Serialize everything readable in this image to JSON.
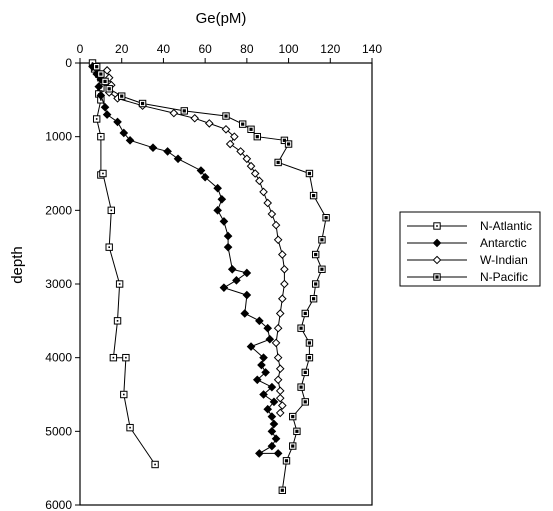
{
  "chart_data": {
    "type": "line",
    "title": "",
    "xlabel": "Ge(pM)",
    "ylabel": "depth",
    "xlim": [
      0,
      140
    ],
    "ylim": [
      0,
      6000
    ],
    "y_inverted": true,
    "x_axis_position": "top",
    "x_ticks": [
      0,
      20,
      40,
      60,
      80,
      100,
      120,
      140
    ],
    "y_ticks": [
      0,
      1000,
      2000,
      3000,
      4000,
      5000,
      6000
    ],
    "grid": false,
    "legend_position": "right",
    "series": [
      {
        "name": "N-Atlantic",
        "marker": "square-open",
        "points": [
          [
            6,
            0
          ],
          [
            7,
            80
          ],
          [
            9,
            150
          ],
          [
            10,
            200
          ],
          [
            11,
            260
          ],
          [
            10,
            340
          ],
          [
            9,
            420
          ],
          [
            10,
            500
          ],
          [
            8,
            760
          ],
          [
            10,
            1000
          ],
          [
            10,
            1520
          ],
          [
            11,
            1500
          ],
          [
            15,
            2000
          ],
          [
            14,
            2500
          ],
          [
            19,
            3000
          ],
          [
            18,
            3500
          ],
          [
            16,
            4000
          ],
          [
            22,
            4000
          ],
          [
            21,
            4500
          ],
          [
            24,
            4950
          ],
          [
            36,
            5450
          ]
        ]
      },
      {
        "name": "Antarctic",
        "marker": "diamond-filled",
        "points": [
          [
            6,
            50
          ],
          [
            8,
            150
          ],
          [
            10,
            220
          ],
          [
            9,
            320
          ],
          [
            10,
            440
          ],
          [
            12,
            600
          ],
          [
            13,
            700
          ],
          [
            18,
            800
          ],
          [
            21,
            950
          ],
          [
            24,
            1050
          ],
          [
            35,
            1150
          ],
          [
            42,
            1200
          ],
          [
            47,
            1300
          ],
          [
            58,
            1460
          ],
          [
            60,
            1550
          ],
          [
            66,
            1700
          ],
          [
            68,
            1850
          ],
          [
            66,
            2000
          ],
          [
            69,
            2150
          ],
          [
            71,
            2350
          ],
          [
            71,
            2500
          ],
          [
            73,
            2800
          ],
          [
            80,
            2850
          ],
          [
            75,
            2950
          ],
          [
            69,
            3050
          ],
          [
            80,
            3150
          ],
          [
            79,
            3400
          ],
          [
            86,
            3500
          ],
          [
            90,
            3600
          ],
          [
            91,
            3750
          ],
          [
            82,
            3850
          ],
          [
            88,
            4000
          ],
          [
            87,
            4100
          ],
          [
            89,
            4200
          ],
          [
            85,
            4300
          ],
          [
            92,
            4400
          ],
          [
            88,
            4500
          ],
          [
            93,
            4600
          ],
          [
            90,
            4700
          ],
          [
            92,
            4800
          ],
          [
            93,
            4900
          ],
          [
            92,
            5000
          ],
          [
            94,
            5100
          ],
          [
            92,
            5200
          ],
          [
            86,
            5300
          ],
          [
            95,
            5300
          ]
        ]
      },
      {
        "name": "W-Indian",
        "marker": "diamond-open",
        "points": [
          [
            13,
            100
          ],
          [
            14,
            200
          ],
          [
            15,
            300
          ],
          [
            14,
            400
          ],
          [
            18,
            480
          ],
          [
            30,
            580
          ],
          [
            45,
            680
          ],
          [
            55,
            750
          ],
          [
            62,
            820
          ],
          [
            70,
            900
          ],
          [
            74,
            1000
          ],
          [
            72,
            1100
          ],
          [
            77,
            1200
          ],
          [
            80,
            1300
          ],
          [
            82,
            1400
          ],
          [
            84,
            1500
          ],
          [
            86,
            1600
          ],
          [
            88,
            1750
          ],
          [
            90,
            1900
          ],
          [
            92,
            2050
          ],
          [
            94,
            2200
          ],
          [
            95,
            2400
          ],
          [
            97,
            2600
          ],
          [
            98,
            2800
          ],
          [
            98,
            3000
          ],
          [
            97,
            3200
          ],
          [
            96,
            3400
          ],
          [
            95,
            3600
          ],
          [
            94,
            3800
          ],
          [
            95,
            4000
          ],
          [
            96,
            4150
          ],
          [
            95,
            4300
          ],
          [
            96,
            4450
          ],
          [
            96,
            4550
          ],
          [
            97,
            4650
          ],
          [
            96,
            4750
          ]
        ]
      },
      {
        "name": "N-Pacific",
        "marker": "square-filled",
        "points": [
          [
            8,
            50
          ],
          [
            10,
            150
          ],
          [
            12,
            250
          ],
          [
            14,
            350
          ],
          [
            20,
            450
          ],
          [
            30,
            550
          ],
          [
            50,
            650
          ],
          [
            70,
            720
          ],
          [
            78,
            830
          ],
          [
            82,
            900
          ],
          [
            85,
            1000
          ],
          [
            98,
            1050
          ],
          [
            100,
            1100
          ],
          [
            95,
            1350
          ],
          [
            110,
            1500
          ],
          [
            112,
            1800
          ],
          [
            118,
            2100
          ],
          [
            116,
            2400
          ],
          [
            113,
            2600
          ],
          [
            116,
            2800
          ],
          [
            113,
            3000
          ],
          [
            112,
            3200
          ],
          [
            108,
            3400
          ],
          [
            106,
            3600
          ],
          [
            110,
            3800
          ],
          [
            110,
            4000
          ],
          [
            108,
            4200
          ],
          [
            106,
            4400
          ],
          [
            108,
            4600
          ],
          [
            102,
            4800
          ],
          [
            104,
            5000
          ],
          [
            102,
            5200
          ],
          [
            99,
            5400
          ],
          [
            97,
            5800
          ]
        ]
      }
    ]
  }
}
